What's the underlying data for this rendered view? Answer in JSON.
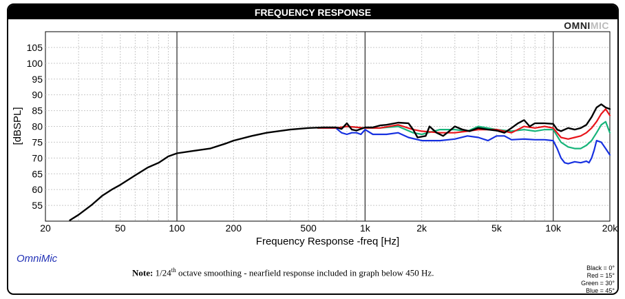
{
  "header": {
    "title": "FREQUENCY RESPONSE"
  },
  "logo": {
    "part1": "OMNI",
    "part2": "MIC"
  },
  "brand_label": "OmniMic",
  "note": {
    "bold": "Note:",
    "pre": " 1/24",
    "sup": "th",
    "post": " octave smoothing - nearfield response included in graph below 450 Hz."
  },
  "legend": [
    "Black = 0°",
    "Red = 15°",
    "Green = 30°",
    "Blue = 45°"
  ],
  "chart_data": {
    "type": "line",
    "xlabel": "Frequency Response -freq [Hz]",
    "ylabel": "[dBSPL]",
    "xscale": "log",
    "xlim": [
      20,
      20000
    ],
    "ylim": [
      50,
      110
    ],
    "x_ticks": [
      20,
      50,
      100,
      200,
      500,
      1000,
      2000,
      5000,
      10000,
      20000
    ],
    "x_tick_labels": [
      "20",
      "50",
      "100",
      "200",
      "500",
      "1k",
      "2k",
      "5k",
      "10k",
      "20k"
    ],
    "y_ticks": [
      55,
      60,
      65,
      70,
      75,
      80,
      85,
      90,
      95,
      100,
      105
    ],
    "grid": true,
    "colors": {
      "black": "#000000",
      "red": "#e8141a",
      "green": "#17b47a",
      "blue": "#1630e0"
    },
    "series": [
      {
        "color": "#000000",
        "points": [
          [
            27,
            50.3
          ],
          [
            30,
            52
          ],
          [
            35,
            55
          ],
          [
            40,
            58
          ],
          [
            45,
            60
          ],
          [
            50,
            61.5
          ],
          [
            60,
            64.5
          ],
          [
            70,
            67
          ],
          [
            80,
            68.5
          ],
          [
            90,
            70.5
          ],
          [
            100,
            71.5
          ],
          [
            120,
            72.2
          ],
          [
            150,
            73
          ],
          [
            180,
            74.5
          ],
          [
            200,
            75.5
          ],
          [
            250,
            77
          ],
          [
            300,
            78
          ],
          [
            400,
            79
          ],
          [
            500,
            79.5
          ],
          [
            600,
            79.7
          ],
          [
            700,
            79.7
          ],
          [
            750,
            79.2
          ],
          [
            800,
            81
          ],
          [
            850,
            79
          ],
          [
            900,
            78.7
          ],
          [
            1000,
            79.7
          ],
          [
            1100,
            79.7
          ],
          [
            1200,
            80.3
          ],
          [
            1300,
            80.5
          ],
          [
            1500,
            81.2
          ],
          [
            1700,
            81
          ],
          [
            1800,
            79
          ],
          [
            1900,
            76.5
          ],
          [
            2100,
            77
          ],
          [
            2200,
            80
          ],
          [
            2400,
            78
          ],
          [
            2600,
            77
          ],
          [
            2800,
            78.5
          ],
          [
            3000,
            80
          ],
          [
            3300,
            79
          ],
          [
            3600,
            78.5
          ],
          [
            4000,
            79.5
          ],
          [
            4500,
            79
          ],
          [
            5000,
            78.7
          ],
          [
            5500,
            78
          ],
          [
            6000,
            79.5
          ],
          [
            6500,
            81
          ],
          [
            7000,
            82
          ],
          [
            7500,
            80
          ],
          [
            8000,
            81
          ],
          [
            9000,
            81
          ],
          [
            10000,
            80.8
          ],
          [
            10500,
            79
          ],
          [
            11000,
            78.5
          ],
          [
            12000,
            79.5
          ],
          [
            13000,
            79
          ],
          [
            14000,
            79.5
          ],
          [
            15000,
            80.5
          ],
          [
            16000,
            83
          ],
          [
            17000,
            86
          ],
          [
            18000,
            87
          ],
          [
            19000,
            86
          ],
          [
            20000,
            85.5
          ]
        ]
      },
      {
        "color": "#e8141a",
        "points": [
          [
            560,
            79.5
          ],
          [
            700,
            79.5
          ],
          [
            800,
            80
          ],
          [
            1000,
            79.5
          ],
          [
            1200,
            79.5
          ],
          [
            1500,
            80.5
          ],
          [
            1800,
            79
          ],
          [
            2000,
            78.5
          ],
          [
            2500,
            78
          ],
          [
            3000,
            78
          ],
          [
            3500,
            78.5
          ],
          [
            4000,
            79
          ],
          [
            5000,
            79
          ],
          [
            6000,
            78
          ],
          [
            7000,
            80
          ],
          [
            8000,
            79.5
          ],
          [
            9000,
            80
          ],
          [
            10000,
            79.5
          ],
          [
            11000,
            76.5
          ],
          [
            12000,
            76
          ],
          [
            13000,
            76.5
          ],
          [
            14000,
            77
          ],
          [
            15000,
            78
          ],
          [
            16000,
            79.5
          ],
          [
            17000,
            81.5
          ],
          [
            18000,
            84
          ],
          [
            19000,
            85.5
          ],
          [
            20000,
            83.5
          ]
        ]
      },
      {
        "color": "#17b47a",
        "points": [
          [
            560,
            79.5
          ],
          [
            700,
            79.5
          ],
          [
            800,
            80
          ],
          [
            1000,
            79.5
          ],
          [
            1200,
            79.5
          ],
          [
            1500,
            80
          ],
          [
            1800,
            78
          ],
          [
            2000,
            77.5
          ],
          [
            2500,
            79
          ],
          [
            3000,
            79
          ],
          [
            3500,
            78.5
          ],
          [
            4000,
            80
          ],
          [
            5000,
            79
          ],
          [
            6000,
            78.5
          ],
          [
            7000,
            79
          ],
          [
            8000,
            78.5
          ],
          [
            9000,
            79
          ],
          [
            10000,
            79
          ],
          [
            11000,
            75
          ],
          [
            12000,
            73.5
          ],
          [
            13000,
            73
          ],
          [
            14000,
            73
          ],
          [
            15000,
            74
          ],
          [
            16000,
            75.5
          ],
          [
            17000,
            78
          ],
          [
            18000,
            80.5
          ],
          [
            19000,
            81.5
          ],
          [
            20000,
            78
          ]
        ]
      },
      {
        "color": "#1630e0",
        "points": [
          [
            600,
            79.5
          ],
          [
            700,
            79.5
          ],
          [
            750,
            78
          ],
          [
            800,
            77.5
          ],
          [
            850,
            78
          ],
          [
            900,
            78
          ],
          [
            950,
            77.5
          ],
          [
            1000,
            79
          ],
          [
            1100,
            77.5
          ],
          [
            1300,
            77.5
          ],
          [
            1500,
            78
          ],
          [
            1700,
            76.5
          ],
          [
            2000,
            75.5
          ],
          [
            2500,
            75.5
          ],
          [
            3000,
            76
          ],
          [
            3500,
            77
          ],
          [
            4000,
            76.5
          ],
          [
            4500,
            75.5
          ],
          [
            5000,
            77
          ],
          [
            5500,
            77
          ],
          [
            6000,
            75.8
          ],
          [
            7000,
            76
          ],
          [
            8000,
            75.8
          ],
          [
            9000,
            75.8
          ],
          [
            10000,
            75.5
          ],
          [
            10500,
            73
          ],
          [
            11000,
            70
          ],
          [
            11500,
            68.5
          ],
          [
            12000,
            68.2
          ],
          [
            13000,
            68.8
          ],
          [
            14000,
            68.5
          ],
          [
            15000,
            69
          ],
          [
            15500,
            68.5
          ],
          [
            16000,
            70
          ],
          [
            16500,
            72.5
          ],
          [
            17000,
            75.5
          ],
          [
            18000,
            75
          ],
          [
            19000,
            73
          ],
          [
            20000,
            71
          ]
        ]
      }
    ]
  }
}
